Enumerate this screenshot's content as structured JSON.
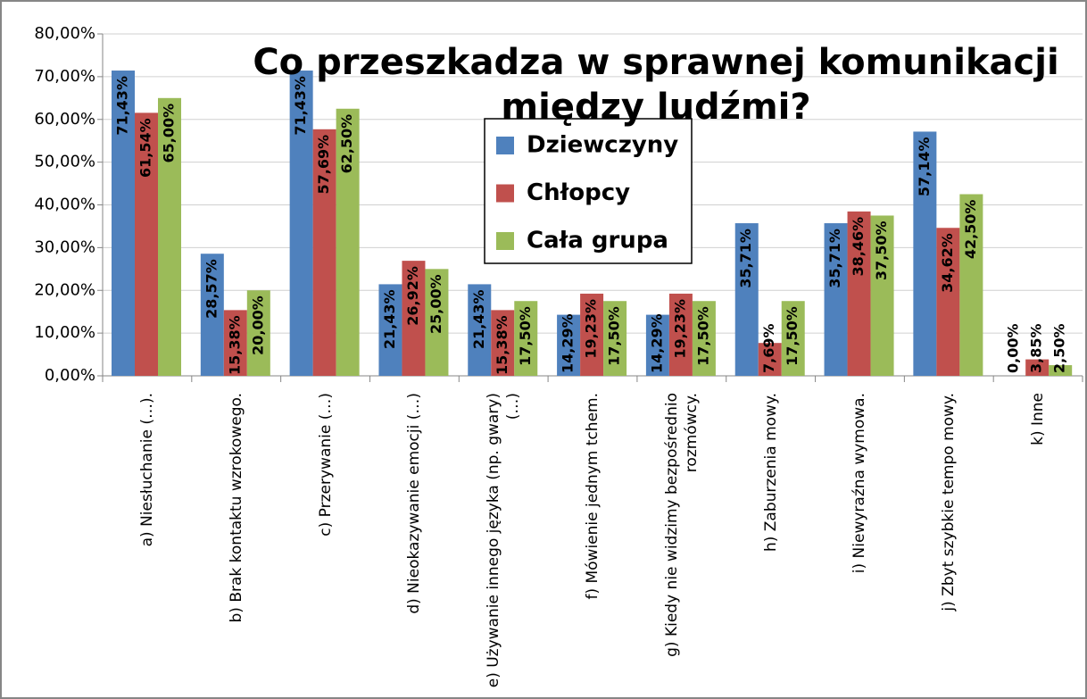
{
  "chart_data": {
    "type": "bar",
    "title": "Co przeszkadza w sprawnej komunikacji między ludźmi?",
    "categories": [
      "a) Niesłuchanie (…).",
      "b) Brak kontaktu wzrokowego.",
      "c) Przerywanie (…)",
      "d) Nieokazywanie emocji (…)",
      "e) Używanie innego języka (np. gwary) (…)",
      "f) Mówienie jednym tchem.",
      "g) Kiedy nie widzimy bezpośrednio rozmówcy.",
      "h) Zaburzenia mowy.",
      "i) Niewyraźna wymowa.",
      "j) Zbyt szybkie tempo mowy.",
      "k) Inne"
    ],
    "series": [
      {
        "name": "Dziewczyny",
        "color": "#4f81bd",
        "values": [
          71.43,
          28.57,
          71.43,
          21.43,
          21.43,
          14.29,
          14.29,
          35.71,
          35.71,
          57.14,
          0
        ],
        "value_labels": [
          "71,43%",
          "28,57%",
          "71,43%",
          "21,43%",
          "21,43%",
          "14,29%",
          "14,29%",
          "35,71%",
          "35,71%",
          "57,14%",
          "0,00%"
        ]
      },
      {
        "name": "Chłopcy",
        "color": "#c0504d",
        "values": [
          61.54,
          15.38,
          57.69,
          26.92,
          15.38,
          19.23,
          19.23,
          7.69,
          38.46,
          34.62,
          3.85
        ],
        "value_labels": [
          "61,54%",
          "15,38%",
          "57,69%",
          "26,92%",
          "15,38%",
          "19,23%",
          "19,23%",
          "7,69%",
          "38,46%",
          "34,62%",
          "3,85%"
        ]
      },
      {
        "name": "Cała grupa",
        "color": "#9bbb59",
        "values": [
          65,
          20,
          62.5,
          25,
          17.5,
          17.5,
          17.5,
          17.5,
          37.5,
          42.5,
          2.5
        ],
        "value_labels": [
          "65,00%",
          "20,00%",
          "62,50%",
          "25,00%",
          "17,50%",
          "17,50%",
          "17,50%",
          "17,50%",
          "37,50%",
          "42,50%",
          "2,50%"
        ]
      }
    ],
    "ylim": [
      0,
      80
    ],
    "yticks": [
      {
        "value": 0,
        "label": "0,00%"
      },
      {
        "value": 10,
        "label": "10,00%"
      },
      {
        "value": 20,
        "label": "20,00%"
      },
      {
        "value": 30,
        "label": "30,00%"
      },
      {
        "value": 40,
        "label": "40,00%"
      },
      {
        "value": 50,
        "label": "50,00%"
      },
      {
        "value": 60,
        "label": "60,00%"
      },
      {
        "value": 70,
        "label": "70,00%"
      },
      {
        "value": 80,
        "label": "80,00%"
      }
    ],
    "grid": true
  }
}
